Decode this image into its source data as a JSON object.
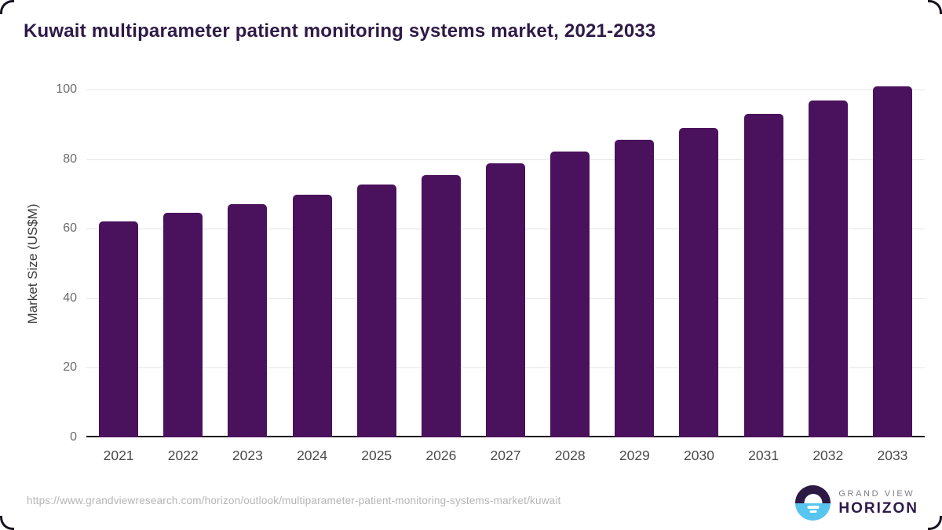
{
  "title": "Kuwait multiparameter patient monitoring systems market, 2021-2033",
  "chart_data": {
    "type": "bar",
    "title": "Kuwait multiparameter patient monitoring systems market, 2021-2033",
    "categories": [
      "2021",
      "2022",
      "2023",
      "2024",
      "2025",
      "2026",
      "2027",
      "2028",
      "2029",
      "2030",
      "2031",
      "2032",
      "2033"
    ],
    "values": [
      62,
      64.5,
      67,
      69.8,
      72.6,
      75.5,
      78.7,
      82.1,
      85.5,
      89,
      92.9,
      96.9,
      100.8
    ],
    "xlabel": "",
    "ylabel": "Market Size (US$M)",
    "ylim": [
      0,
      100
    ],
    "yticks": [
      0,
      20,
      40,
      60,
      80,
      100
    ],
    "grid": "horizontal",
    "legend": "none",
    "bar_color": "#4a115c"
  },
  "colors": {
    "title_text": "#2e1a47",
    "bar": "#4a115c",
    "axis_baseline": "#1c1c1c",
    "gridline": "#e6e6e6",
    "logo_purple": "#2c1a44",
    "logo_blue": "#58c5f1"
  },
  "footer": {
    "source_url": "https://www.grandviewresearch.com/horizon/outlook/multiparameter-patient-monitoring-systems-market/kuwait",
    "logo": {
      "line1": "GRAND VIEW",
      "line2": "HORIZON"
    }
  }
}
